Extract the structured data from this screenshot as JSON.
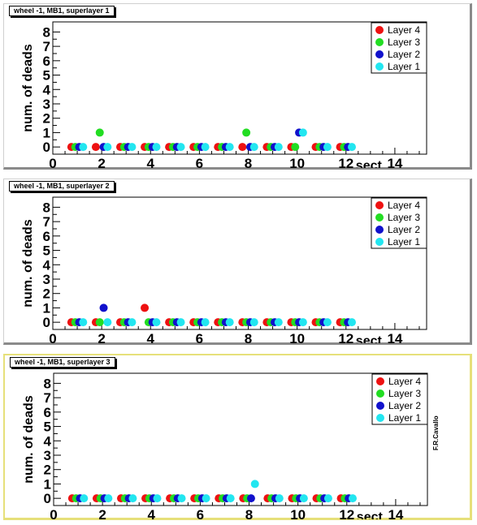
{
  "signature": "F.R.Cavallo",
  "colors": {
    "Layer 4": "#ee1111",
    "Layer 3": "#22dd22",
    "Layer 2": "#1111cc",
    "Layer 1": "#22e6f0"
  },
  "chart_data": [
    {
      "type": "scatter",
      "title": "wheel -1, MB1, superlayer 1",
      "xlabel": "sect",
      "ylabel": "num. of deads",
      "xlim": [
        0,
        15.3
      ],
      "ylim": [
        -0.5,
        8.7
      ],
      "x_ticks": [
        "0",
        "2",
        "4",
        "6",
        "8",
        "10",
        "12",
        "14"
      ],
      "y_ticks": [
        "0",
        "1",
        "2",
        "3",
        "4",
        "5",
        "6",
        "7",
        "8"
      ],
      "legend_position": "top-right",
      "series": [
        {
          "name": "Layer 4",
          "x": [
            1,
            2,
            3,
            4,
            5,
            6,
            7,
            8,
            9,
            10,
            11,
            12
          ],
          "y": [
            0,
            0,
            0,
            0,
            0,
            0,
            0,
            0,
            0,
            0,
            0,
            0
          ]
        },
        {
          "name": "Layer 3",
          "x": [
            1,
            2,
            3,
            4,
            5,
            6,
            7,
            8,
            9,
            10,
            11,
            12
          ],
          "y": [
            0,
            1,
            0,
            0,
            0,
            0,
            0,
            1,
            0,
            0,
            0,
            0
          ]
        },
        {
          "name": "Layer 2",
          "x": [
            1,
            2,
            3,
            4,
            5,
            6,
            7,
            8,
            9,
            10,
            11,
            12
          ],
          "y": [
            0,
            0,
            0,
            0,
            0,
            0,
            0,
            0,
            0,
            1,
            0,
            0
          ]
        },
        {
          "name": "Layer 1",
          "x": [
            1,
            2,
            3,
            4,
            5,
            6,
            7,
            8,
            9,
            10,
            11,
            12
          ],
          "y": [
            0,
            0,
            0,
            0,
            0,
            0,
            0,
            0,
            0,
            1,
            0,
            0
          ]
        }
      ]
    },
    {
      "type": "scatter",
      "title": "wheel -1, MB1, superlayer 2",
      "xlabel": "sect",
      "ylabel": "num. of deads",
      "xlim": [
        0,
        15.3
      ],
      "ylim": [
        -0.5,
        8.7
      ],
      "x_ticks": [
        "0",
        "2",
        "4",
        "6",
        "8",
        "10",
        "12",
        "14"
      ],
      "y_ticks": [
        "0",
        "1",
        "2",
        "3",
        "4",
        "5",
        "6",
        "7",
        "8"
      ],
      "legend_position": "top-right",
      "series": [
        {
          "name": "Layer 4",
          "x": [
            1,
            2,
            3,
            4,
            5,
            6,
            7,
            8,
            9,
            10,
            11,
            12
          ],
          "y": [
            0,
            0,
            0,
            1,
            0,
            0,
            0,
            0,
            0,
            0,
            0,
            0
          ]
        },
        {
          "name": "Layer 3",
          "x": [
            1,
            2,
            3,
            4,
            5,
            6,
            7,
            8,
            9,
            10,
            11,
            12
          ],
          "y": [
            0,
            0,
            0,
            0,
            0,
            0,
            0,
            0,
            0,
            0,
            0,
            0
          ]
        },
        {
          "name": "Layer 2",
          "x": [
            1,
            2,
            3,
            4,
            5,
            6,
            7,
            8,
            9,
            10,
            11,
            12
          ],
          "y": [
            0,
            1,
            0,
            0,
            0,
            0,
            0,
            0,
            0,
            0,
            0,
            0
          ]
        },
        {
          "name": "Layer 1",
          "x": [
            1,
            2,
            3,
            4,
            5,
            6,
            7,
            8,
            9,
            10,
            11,
            12
          ],
          "y": [
            0,
            0,
            0,
            0,
            0,
            0,
            0,
            0,
            0,
            0,
            0,
            0
          ]
        }
      ]
    },
    {
      "type": "scatter",
      "title": "wheel -1, MB1, superlayer 3",
      "xlabel": "sect",
      "ylabel": "num. of deads",
      "xlim": [
        0,
        15.3
      ],
      "ylim": [
        -0.5,
        8.7
      ],
      "x_ticks": [
        "0",
        "2",
        "4",
        "6",
        "8",
        "10",
        "12",
        "14"
      ],
      "y_ticks": [
        "0",
        "1",
        "2",
        "3",
        "4",
        "5",
        "6",
        "7",
        "8"
      ],
      "legend_position": "top-right",
      "series": [
        {
          "name": "Layer 4",
          "x": [
            1,
            2,
            3,
            4,
            5,
            6,
            7,
            8,
            9,
            10,
            11,
            12
          ],
          "y": [
            0,
            0,
            0,
            0,
            0,
            0,
            0,
            0,
            0,
            0,
            0,
            0
          ]
        },
        {
          "name": "Layer 3",
          "x": [
            1,
            2,
            3,
            4,
            5,
            6,
            7,
            8,
            9,
            10,
            11,
            12
          ],
          "y": [
            0,
            0,
            0,
            0,
            0,
            0,
            0,
            0,
            0,
            0,
            0,
            0
          ]
        },
        {
          "name": "Layer 2",
          "x": [
            1,
            2,
            3,
            4,
            5,
            6,
            7,
            8,
            9,
            10,
            11,
            12
          ],
          "y": [
            0,
            0,
            0,
            0,
            0,
            0,
            0,
            0,
            0,
            0,
            0,
            0
          ]
        },
        {
          "name": "Layer 1",
          "x": [
            1,
            2,
            3,
            4,
            5,
            6,
            7,
            8,
            9,
            10,
            11,
            12
          ],
          "y": [
            0,
            0,
            0,
            0,
            0,
            0,
            0,
            1,
            0,
            0,
            0,
            0
          ]
        }
      ]
    }
  ]
}
